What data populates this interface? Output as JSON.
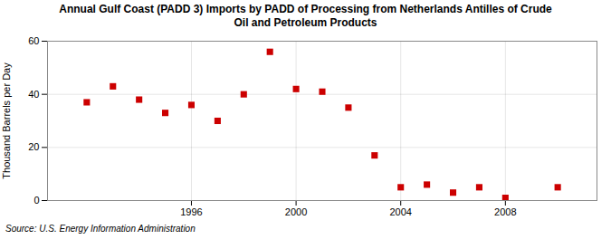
{
  "chart_data": {
    "type": "scatter",
    "title": "Annual Gulf Coast (PADD 3) Imports by PADD of Processing from Netherlands Antilles of Crude\nOil and Petroleum Products",
    "ylabel": "Thousand Barrels per Day",
    "source": "Source: U.S. Energy Information Administration",
    "x": [
      1992,
      1993,
      1994,
      1995,
      1996,
      1997,
      1998,
      1999,
      2000,
      2001,
      2002,
      2003,
      2004,
      2005,
      2006,
      2007,
      2008,
      2010
    ],
    "values": [
      37,
      43,
      38,
      33,
      36,
      30,
      40,
      56,
      42,
      41,
      35,
      17,
      5,
      6,
      3,
      5,
      1,
      5
    ],
    "color": "#cc0000",
    "marker": "square",
    "xlim": [
      1990.5,
      2011.5
    ],
    "xticks": [
      1996,
      2000,
      2004,
      2008
    ],
    "ylim": [
      0,
      60
    ],
    "yticks": [
      0,
      20,
      40,
      60
    ],
    "grid": true
  }
}
